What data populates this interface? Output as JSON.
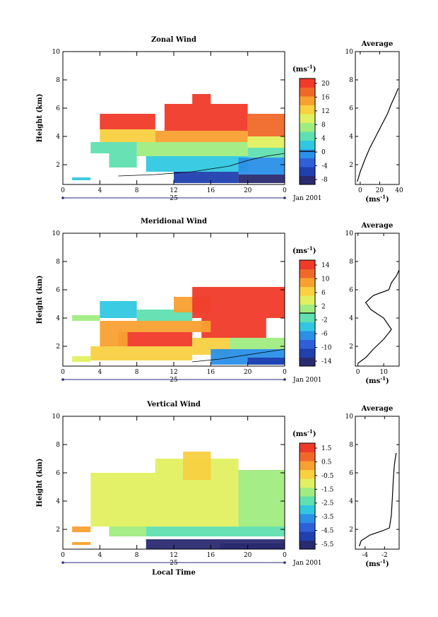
{
  "chart_data": [
    {
      "type": "heatmap",
      "title": "Zonal Wind",
      "ylabel": "Height (km)",
      "x_ticks": [
        "0",
        "4",
        "8",
        "12",
        "16",
        "20",
        "0"
      ],
      "y_ticks": [
        "2",
        "4",
        "6",
        "8",
        "10"
      ],
      "xlim": [
        0,
        24
      ],
      "ylim": [
        0.6,
        10
      ],
      "date_label": "25",
      "date_suffix": "Jan 2001",
      "colorbar": {
        "unit_base": "(ms",
        "unit_exp": "-1",
        "unit_end": ")",
        "ticks": [
          "20",
          "16",
          "12",
          "8",
          "4",
          "0",
          "-4",
          "-8"
        ],
        "range": [
          -10,
          22
        ],
        "colors": [
          "#2a2a70",
          "#2040b0",
          "#3060d8",
          "#2a90e8",
          "#30c8e0",
          "#60e0b0",
          "#a0ec80",
          "#e0f060",
          "#f8d040",
          "#f8a030",
          "#f06828",
          "#f03a2a"
        ]
      },
      "average": {
        "title": "Average",
        "x_ticks": [
          "0",
          "20",
          "40"
        ],
        "xlim": [
          -5,
          40
        ],
        "y_ticks": [
          "2",
          "4",
          "6",
          "8",
          "10"
        ],
        "xlabel_base": "(ms",
        "xlabel_exp": "-1",
        "xlabel_end": ")",
        "profile": [
          [
            -3,
            0.8
          ],
          [
            0,
            1.5
          ],
          [
            5,
            2.4
          ],
          [
            10,
            3.2
          ],
          [
            16,
            4.0
          ],
          [
            22,
            4.8
          ],
          [
            28,
            5.6
          ],
          [
            32,
            6.3
          ],
          [
            36,
            6.9
          ],
          [
            39,
            7.4
          ]
        ]
      },
      "zones": [
        {
          "t0": 4,
          "t1": 10,
          "z0": 4.5,
          "z1": 5.6,
          "v": 21
        },
        {
          "t0": 11,
          "t1": 20,
          "z0": 4.4,
          "z1": 6.3,
          "v": 21
        },
        {
          "t0": 14,
          "t1": 16,
          "z0": 6.3,
          "z1": 7.0,
          "v": 20
        },
        {
          "t0": 20,
          "t1": 24,
          "z0": 4.0,
          "z1": 5.6,
          "v": 18
        },
        {
          "t0": 4,
          "t1": 10,
          "z0": 3.6,
          "z1": 4.5,
          "v": 12
        },
        {
          "t0": 10,
          "t1": 20,
          "z0": 3.6,
          "z1": 4.4,
          "v": 14
        },
        {
          "t0": 20,
          "t1": 24,
          "z0": 3.2,
          "z1": 4.0,
          "v": 10
        },
        {
          "t0": 3,
          "t1": 8,
          "z0": 2.8,
          "z1": 3.6,
          "v": 5
        },
        {
          "t0": 8,
          "t1": 20,
          "z0": 2.6,
          "z1": 3.6,
          "v": 7
        },
        {
          "t0": 20,
          "t1": 24,
          "z0": 2.5,
          "z1": 3.2,
          "v": 4
        },
        {
          "t0": 5,
          "t1": 8,
          "z0": 1.8,
          "z1": 2.8,
          "v": 4
        },
        {
          "t0": 9,
          "t1": 20,
          "z0": 1.5,
          "z1": 2.6,
          "v": 3
        },
        {
          "t0": 19,
          "t1": 24,
          "z0": 1.3,
          "z1": 2.5,
          "v": 0
        },
        {
          "t0": 12,
          "t1": 19,
          "z0": 0.7,
          "z1": 1.5,
          "v": -6
        },
        {
          "t0": 19,
          "t1": 24,
          "z0": 0.7,
          "z1": 1.3,
          "v": -8
        },
        {
          "t0": 1,
          "t1": 3,
          "z0": 0.9,
          "z1": 1.1,
          "v": 2
        }
      ],
      "zero_line": [
        [
          6,
          1.2
        ],
        [
          10,
          1.3
        ],
        [
          14,
          1.5
        ],
        [
          18,
          1.9
        ],
        [
          20,
          2.3
        ],
        [
          22,
          2.6
        ],
        [
          24,
          2.8
        ]
      ]
    },
    {
      "type": "heatmap",
      "title": "Meridional Wind",
      "ylabel": "Height (km)",
      "x_ticks": [
        "0",
        "4",
        "8",
        "12",
        "16",
        "20",
        "0"
      ],
      "y_ticks": [
        "2",
        "4",
        "6",
        "8",
        "10"
      ],
      "xlim": [
        0,
        24
      ],
      "ylim": [
        0.6,
        10
      ],
      "date_label": "25",
      "date_suffix": "Jan 2001",
      "colorbar": {
        "unit_base": "(ms",
        "unit_exp": "-1",
        "unit_end": ")",
        "ticks": [
          "14",
          "10",
          "6",
          "2",
          "-2",
          "-6",
          "-10",
          "-14"
        ],
        "range": [
          -16,
          16
        ],
        "colors": [
          "#2a2a70",
          "#2040b0",
          "#3060d8",
          "#2a90e8",
          "#30c8e0",
          "#60e0b0",
          "#a0ec80",
          "#e0f060",
          "#f8d040",
          "#f8a030",
          "#f06828",
          "#f03a2a"
        ]
      },
      "average": {
        "title": "Average",
        "x_ticks": [
          "0",
          "10"
        ],
        "xlim": [
          -1,
          16
        ],
        "y_ticks": [
          "2",
          "4",
          "6",
          "8",
          "10"
        ],
        "xlabel_base": "(ms",
        "xlabel_exp": "-1",
        "xlabel_end": ")",
        "profile": [
          [
            0,
            0.8
          ],
          [
            3,
            1.2
          ],
          [
            6,
            1.8
          ],
          [
            10,
            2.5
          ],
          [
            13,
            3.2
          ],
          [
            10,
            4.0
          ],
          [
            5,
            4.6
          ],
          [
            3,
            5.1
          ],
          [
            6,
            5.6
          ],
          [
            12,
            6.0
          ],
          [
            13,
            6.5
          ],
          [
            15,
            7.0
          ],
          [
            16,
            7.4
          ]
        ]
      },
      "zones": [
        {
          "t0": 4,
          "t1": 8,
          "z0": 4.0,
          "z1": 5.2,
          "v": -4
        },
        {
          "t0": 8,
          "t1": 14,
          "z0": 3.8,
          "z1": 4.6,
          "v": -1
        },
        {
          "t0": 1,
          "t1": 4,
          "z0": 3.8,
          "z1": 4.2,
          "v": 0
        },
        {
          "t0": 12,
          "t1": 16,
          "z0": 4.4,
          "z1": 5.5,
          "v": 8
        },
        {
          "t0": 14,
          "t1": 24,
          "z0": 4.0,
          "z1": 6.2,
          "v": 15
        },
        {
          "t0": 15,
          "t1": 22,
          "z0": 2.6,
          "z1": 4.0,
          "v": 15
        },
        {
          "t0": 4,
          "t1": 16,
          "z0": 3.0,
          "z1": 3.8,
          "v": 10
        },
        {
          "t0": 6,
          "t1": 14,
          "z0": 2.0,
          "z1": 3.0,
          "v": 15
        },
        {
          "t0": 4,
          "t1": 7,
          "z0": 2.0,
          "z1": 3.0,
          "v": 9
        },
        {
          "t0": 14,
          "t1": 18,
          "z0": 1.4,
          "z1": 2.6,
          "v": 6
        },
        {
          "t0": 3,
          "t1": 14,
          "z0": 1.0,
          "z1": 2.0,
          "v": 7
        },
        {
          "t0": 1,
          "t1": 3,
          "z0": 0.9,
          "z1": 1.3,
          "v": 3
        },
        {
          "t0": 18,
          "t1": 24,
          "z0": 1.8,
          "z1": 2.6,
          "v": 2
        },
        {
          "t0": 16,
          "t1": 24,
          "z0": 0.7,
          "z1": 1.8,
          "v": -6
        },
        {
          "t0": 20,
          "t1": 24,
          "z0": 0.7,
          "z1": 1.2,
          "v": -12
        }
      ],
      "zero_line": [
        [
          14,
          0.9
        ],
        [
          17,
          1.1
        ],
        [
          20,
          1.4
        ],
        [
          22,
          1.6
        ],
        [
          24,
          1.8
        ]
      ]
    },
    {
      "type": "heatmap",
      "title": "Vertical Wind",
      "ylabel": "Height (km)",
      "xlabel": "Local Time",
      "x_ticks": [
        "0",
        "4",
        "8",
        "12",
        "16",
        "20",
        "0"
      ],
      "y_ticks": [
        "2",
        "4",
        "6",
        "8",
        "10"
      ],
      "xlim": [
        0,
        24
      ],
      "ylim": [
        0.6,
        10
      ],
      "date_label": "25",
      "date_suffix": "Jan 2001",
      "colorbar": {
        "unit_base": "(ms",
        "unit_exp": "-1",
        "unit_end": ")",
        "ticks": [
          "1.5",
          "0.5",
          "-0.5",
          "-1.5",
          "-2.5",
          "-3.5",
          "-4.5",
          "-5.5"
        ],
        "range": [
          -6.2,
          2.1
        ],
        "colors": [
          "#2a2a70",
          "#2040b0",
          "#3060d8",
          "#2a90e8",
          "#30c8e0",
          "#60e0b0",
          "#a0ec80",
          "#e0f060",
          "#f8d040",
          "#f8a030",
          "#f06828",
          "#f03a2a"
        ]
      },
      "average": {
        "title": "Average",
        "x_ticks": [
          "-4",
          "-2"
        ],
        "xlim": [
          -5,
          -0.5
        ],
        "y_ticks": [
          "2",
          "4",
          "6",
          "8",
          "10"
        ],
        "xlabel_base": "(ms",
        "xlabel_exp": "-1",
        "xlabel_end": ")",
        "profile": [
          [
            -4.6,
            0.8
          ],
          [
            -4.4,
            1.2
          ],
          [
            -3.5,
            1.6
          ],
          [
            -2.2,
            1.9
          ],
          [
            -1.5,
            2.1
          ],
          [
            -1.3,
            3.0
          ],
          [
            -1.2,
            4.2
          ],
          [
            -1.1,
            5.5
          ],
          [
            -1.0,
            6.5
          ],
          [
            -0.9,
            7.0
          ],
          [
            -0.8,
            7.4
          ]
        ]
      },
      "zones": [
        {
          "t0": 3,
          "t1": 10,
          "z0": 2.2,
          "z1": 6.0,
          "v": -1.2
        },
        {
          "t0": 10,
          "t1": 19,
          "z0": 2.2,
          "z1": 7.0,
          "v": -0.9
        },
        {
          "t0": 13,
          "t1": 16,
          "z0": 5.5,
          "z1": 7.5,
          "v": 0.0
        },
        {
          "t0": 19,
          "t1": 24,
          "z0": 2.2,
          "z1": 6.2,
          "v": -1.4
        },
        {
          "t0": 5,
          "t1": 9,
          "z0": 1.5,
          "z1": 2.2,
          "v": -1.6
        },
        {
          "t0": 1,
          "t1": 3,
          "z0": 1.8,
          "z1": 2.2,
          "v": 0.2
        },
        {
          "t0": 1,
          "t1": 3,
          "z0": 0.9,
          "z1": 1.1,
          "v": 0.2
        },
        {
          "t0": 9,
          "t1": 24,
          "z0": 1.5,
          "z1": 2.2,
          "v": -2.6
        },
        {
          "t0": 9,
          "t1": 24,
          "z0": 0.6,
          "z1": 1.3,
          "v": -5.6
        },
        {
          "t0": 17,
          "t1": 24,
          "z0": 0.6,
          "z1": 1.0,
          "v": -6.0
        }
      ]
    }
  ]
}
